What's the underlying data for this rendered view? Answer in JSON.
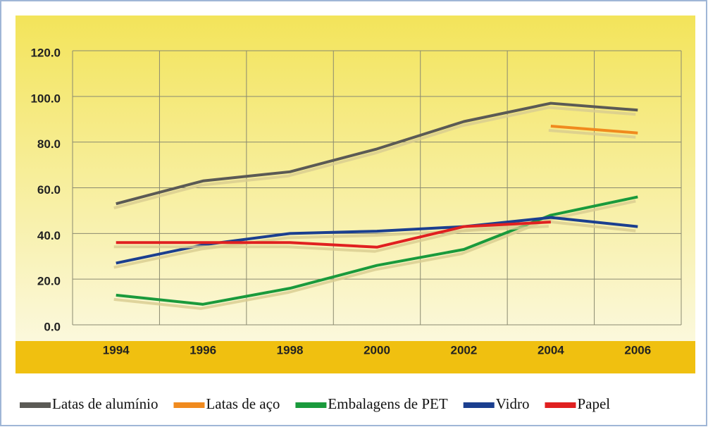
{
  "chart_data": {
    "type": "line",
    "x": [
      1994,
      1996,
      1998,
      2000,
      2002,
      2004,
      2006
    ],
    "xlim": [
      1993,
      2007
    ],
    "xticks": [
      1994,
      1996,
      1998,
      2000,
      2002,
      2004,
      2006
    ],
    "x_gridlines": [
      1993,
      1995,
      1997,
      1999,
      2001,
      2003,
      2005,
      2007
    ],
    "ylim": [
      0,
      120
    ],
    "yticks": [
      {
        "value": 0,
        "label": "0.0"
      },
      {
        "value": 20,
        "label": "20.0"
      },
      {
        "value": 40,
        "label": "40.0"
      },
      {
        "value": 60,
        "label": "60.0"
      },
      {
        "value": 80,
        "label": "80.0"
      },
      {
        "value": 100,
        "label": "100.0"
      },
      {
        "value": 120,
        "label": "120.0"
      }
    ],
    "grid": true,
    "series": [
      {
        "name": "Latas de alumínio",
        "color": "#5b5a55",
        "values": [
          53,
          63,
          67,
          77,
          89,
          97,
          94
        ]
      },
      {
        "name": "Latas de aço",
        "color": "#f08a1e",
        "values": [
          null,
          null,
          null,
          null,
          null,
          87,
          84
        ]
      },
      {
        "name": "Embalagens de PET",
        "color": "#1a9a3c",
        "values": [
          13,
          9,
          16,
          26,
          33,
          48,
          56
        ]
      },
      {
        "name": "Vidro",
        "color": "#1b3f8f",
        "values": [
          27,
          35,
          40,
          41,
          43,
          47,
          43
        ]
      },
      {
        "name": "Papel",
        "color": "#e02020",
        "values": [
          36,
          36,
          36,
          34,
          43,
          45,
          null
        ]
      }
    ]
  }
}
